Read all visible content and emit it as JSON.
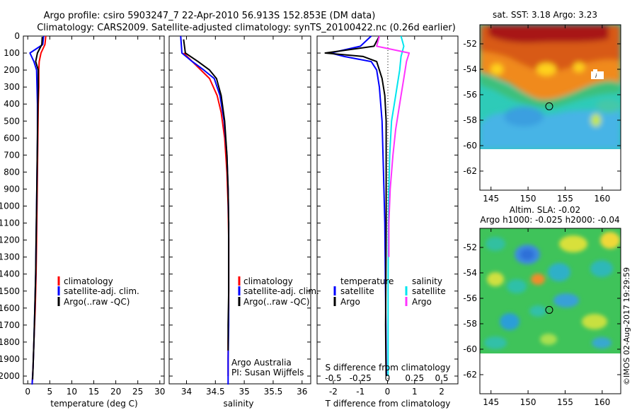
{
  "header": {
    "line1": "Argo profile: csiro 5903247_7 22-Apr-2010 56.913S 152.853E (DM data)",
    "line2": "Climatology: CARS2009. Satellite-adjusted climatology: synTS_20100422.nc (0.26d earlier)"
  },
  "credit": "©IMOS 02-Aug-2017 19:29:59",
  "colors": {
    "climatology": "#ff0000",
    "satellite": "#0000ff",
    "argo": "#000000",
    "satellite_salinity": "#00e5ee",
    "argo_salinity": "#ff33ff"
  },
  "chart_data": [
    {
      "id": "temperature",
      "type": "line",
      "xlabel": "temperature (deg C)",
      "ylabel": "",
      "xlim": [
        -1,
        31
      ],
      "ylim": [
        2070,
        0
      ],
      "xticks": [
        0,
        5,
        10,
        15,
        20,
        25,
        30
      ],
      "xticklabels": [
        "0",
        "5",
        "10",
        "15",
        "20",
        "25",
        "30"
      ],
      "yticks": [
        0,
        100,
        200,
        300,
        400,
        500,
        600,
        700,
        800,
        900,
        1000,
        1100,
        1200,
        1300,
        1400,
        1500,
        1600,
        1700,
        1800,
        1900,
        2000
      ],
      "legend": {
        "position": "lower-left",
        "entries": [
          "climatology",
          "satellite-adj. clim.",
          "Argo(..raw -QC)"
        ]
      },
      "series": [
        {
          "name": "climatology",
          "color": "#ff0000",
          "x": [
            4.1,
            3.9,
            3.0,
            2.6,
            2.5,
            2.5,
            2.4,
            2.3,
            2.2,
            2.1,
            2.0,
            1.9,
            1.7,
            1.4,
            1.2,
            1.0
          ],
          "y": [
            0,
            50,
            100,
            150,
            200,
            300,
            400,
            600,
            800,
            1000,
            1200,
            1400,
            1600,
            1800,
            1950,
            2050
          ]
        },
        {
          "name": "satellite-adj. clim.",
          "color": "#0000ff",
          "x": [
            3.6,
            3.4,
            0.5,
            1.4,
            2.0,
            2.1,
            2.2,
            2.2,
            2.1,
            2.0,
            1.9,
            1.8,
            1.6,
            1.4,
            1.2,
            1.0
          ],
          "y": [
            0,
            50,
            100,
            150,
            200,
            300,
            400,
            600,
            800,
            1000,
            1200,
            1400,
            1600,
            1800,
            1950,
            2050
          ]
        },
        {
          "name": "Argo(..raw -QC)",
          "color": "#000000",
          "x": [
            3.3,
            3.2,
            2.2,
            1.8,
            2.4,
            2.4,
            2.3,
            2.2,
            2.1,
            2.0,
            1.9,
            1.8,
            1.6,
            1.4,
            1.2,
            1.1
          ],
          "y": [
            5,
            50,
            100,
            150,
            200,
            300,
            400,
            600,
            800,
            1000,
            1200,
            1400,
            1600,
            1800,
            1950,
            2020
          ]
        }
      ]
    },
    {
      "id": "salinity",
      "type": "line",
      "xlabel": "salinity",
      "ylabel": "",
      "xlim": [
        33.7,
        36.15
      ],
      "ylim": [
        2070,
        0
      ],
      "xticks": [
        34,
        34.5,
        35,
        35.5,
        36
      ],
      "xticklabels": [
        "34",
        "34.5",
        "35",
        "35.5",
        "36"
      ],
      "legend": {
        "position": "lower-left",
        "entries": [
          "climatology",
          "satellite-adj. clim.",
          "Argo(..raw -QC)"
        ]
      },
      "annotations": [
        "Argo Australia",
        "PI: Susan Wijffels"
      ],
      "series": [
        {
          "name": "climatology",
          "color": "#ff0000",
          "x": [
            33.95,
            34.1,
            34.25,
            34.4,
            34.53,
            34.6,
            34.66,
            34.7,
            34.72,
            34.73,
            34.73,
            34.73,
            34.72,
            34.72,
            34.72
          ],
          "y": [
            100,
            150,
            200,
            250,
            350,
            450,
            600,
            800,
            1000,
            1200,
            1400,
            1600,
            1800,
            1950,
            2000
          ]
        },
        {
          "name": "satellite-adj. clim.",
          "color": "#0000ff",
          "x": [
            33.9,
            33.92,
            34.1,
            34.3,
            34.48,
            34.58,
            34.65,
            34.7,
            34.72,
            34.73,
            34.73,
            34.73,
            34.73,
            34.72,
            34.72
          ],
          "y": [
            0,
            100,
            150,
            200,
            250,
            350,
            500,
            700,
            900,
            1100,
            1300,
            1500,
            1700,
            1900,
            2050
          ]
        },
        {
          "name": "Argo(..raw -QC)",
          "color": "#000000",
          "x": [
            33.95,
            33.98,
            34.2,
            34.4,
            34.52,
            34.6,
            34.66,
            34.7,
            34.72,
            34.73,
            34.73,
            34.73,
            34.72,
            34.72
          ],
          "y": [
            20,
            100,
            150,
            200,
            250,
            350,
            500,
            700,
            900,
            1100,
            1300,
            1500,
            1700,
            1850
          ]
        }
      ]
    },
    {
      "id": "difference",
      "type": "line",
      "xlabel": "T difference from climatology",
      "xlabel_top": "S difference from climatology",
      "xlim": [
        -2.6,
        2.6
      ],
      "ylim": [
        2070,
        0
      ],
      "xticks": [
        -2,
        -1,
        0,
        1,
        2
      ],
      "xticklabels": [
        "-2",
        "-1",
        "0",
        "1",
        "2"
      ],
      "sticks_labels": [
        "-0.5",
        "-0.25",
        "0",
        "0.25",
        "0.5"
      ],
      "sticks_pos": [
        -2,
        -1,
        0,
        1,
        2
      ],
      "legend": {
        "position": "lower",
        "entries": [
          "temperature",
          "satellite",
          "Argo",
          "salinity",
          "satellite",
          "Argo"
        ]
      },
      "series": [
        {
          "name": "temperature satellite",
          "color": "#0000ff",
          "x": [
            -0.6,
            -1.0,
            -2.1,
            -1.6,
            -0.6,
            -0.4,
            -0.3,
            -0.2,
            -0.15,
            -0.1,
            -0.08,
            -0.06,
            -0.05,
            -0.04
          ],
          "y": [
            0,
            60,
            100,
            120,
            150,
            200,
            300,
            500,
            800,
            1100,
            1400,
            1700,
            1900,
            2000
          ]
        },
        {
          "name": "temperature Argo",
          "color": "#000000",
          "x": [
            -0.3,
            -0.5,
            -2.3,
            -0.9,
            -0.4,
            -0.2,
            -0.1,
            -0.05,
            -0.05,
            -0.05,
            -0.06,
            -0.07,
            -0.06,
            -0.05
          ],
          "y": [
            0,
            60,
            100,
            120,
            150,
            250,
            350,
            500,
            800,
            1100,
            1400,
            1700,
            1900,
            2000
          ]
        },
        {
          "name": "salinity satellite",
          "color": "#00e5ee",
          "x": [
            0.5,
            0.6,
            0.5,
            0.45,
            0.35,
            0.25,
            0.15,
            0.08,
            0.05,
            0.03,
            0.02,
            0.02
          ],
          "y": [
            0,
            60,
            120,
            200,
            300,
            400,
            500,
            700,
            900,
            1200,
            1500,
            2000
          ]
        },
        {
          "name": "salinity Argo",
          "color": "#ff33ff",
          "x": [
            -0.3,
            -0.4,
            0.8,
            0.7,
            0.6,
            0.5,
            0.4,
            0.3,
            0.2,
            0.1,
            0.05,
            0.05
          ],
          "y": [
            0,
            60,
            100,
            150,
            250,
            350,
            450,
            550,
            700,
            900,
            1100,
            1300
          ]
        }
      ]
    },
    {
      "id": "sst_map",
      "type": "heatmap",
      "title": "sat. SST: 3.18 Argo: 3.23",
      "xlim": [
        143.5,
        162.5
      ],
      "ylim": [
        -63.5,
        -50.5
      ],
      "data_ylim": [
        -60,
        -50.5
      ],
      "xticks": [
        145,
        150,
        155,
        160
      ],
      "yticks": [
        -52,
        -54,
        -56,
        -58,
        -60,
        -62
      ],
      "marker": {
        "lon": 152.853,
        "lat": -56.913
      }
    },
    {
      "id": "sla_map",
      "type": "heatmap",
      "title": "Altim. SLA: -0.02",
      "subtitle": "Argo h1000: -0.025 h2000: -0.04",
      "xlim": [
        143.5,
        162.5
      ],
      "ylim": [
        -63.5,
        -50.5
      ],
      "data_ylim": [
        -60,
        -50.5
      ],
      "xticks": [
        145,
        150,
        155,
        160
      ],
      "yticks": [
        -52,
        -54,
        -56,
        -58,
        -60,
        -62
      ],
      "marker": {
        "lon": 152.853,
        "lat": -56.913
      }
    }
  ]
}
